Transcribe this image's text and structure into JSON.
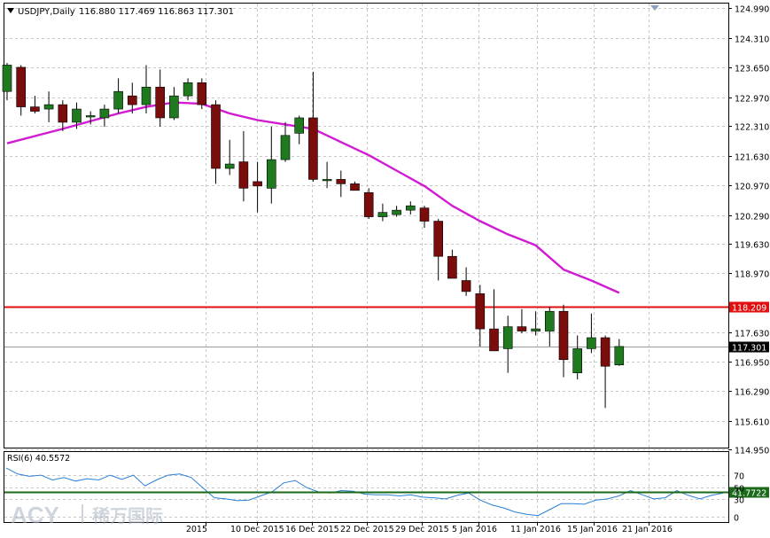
{
  "colors": {
    "background": "#ffffff",
    "grid": "#c8c8c8",
    "bull": "#1f7a1f",
    "bear": "#7a0c0c",
    "ma": "#d21ad2",
    "hline": "#e01010",
    "rsi": "#2a7fd6",
    "rsi_level": "#1a6a1a",
    "price_tag": "#000000",
    "axis_text": "#000000"
  },
  "header": {
    "menu_icon": "triangle-down-icon",
    "symbol": "USDJPY,Daily",
    "ohlc": "116.880 117.469 116.863 117.301"
  },
  "rsi_header": {
    "label": "RSI(6) 40.5572"
  },
  "watermark": {
    "brand": "ACY",
    "chinese": "稀万国际"
  },
  "chart_data": [
    {
      "type": "candlestick",
      "symbol": "USDJPY",
      "timeframe": "Daily",
      "ylim": [
        115.0,
        125.1
      ],
      "y_ticks": [
        "124.990",
        "124.310",
        "123.650",
        "122.970",
        "122.310",
        "121.630",
        "120.970",
        "120.290",
        "119.630",
        "118.970",
        "117.630",
        "116.950",
        "116.290",
        "115.610",
        "114.950"
      ],
      "x_tick_labels": [
        "2015",
        "10 Dec 2015",
        "16 Dec 2015",
        "22 Dec 2015",
        "29 Dec 2015",
        "5 Jan 2016",
        "11 Jan 2016",
        "15 Jan 2016",
        "21 Jan 2016"
      ],
      "candles": [
        {
          "o": 123.1,
          "h": 123.75,
          "l": 122.9,
          "c": 123.7
        },
        {
          "o": 123.65,
          "h": 123.7,
          "l": 122.55,
          "c": 122.75
        },
        {
          "o": 122.75,
          "h": 123.0,
          "l": 122.6,
          "c": 122.65
        },
        {
          "o": 122.7,
          "h": 123.1,
          "l": 122.4,
          "c": 122.8
        },
        {
          "o": 122.8,
          "h": 122.9,
          "l": 122.2,
          "c": 122.4
        },
        {
          "o": 122.4,
          "h": 122.85,
          "l": 122.25,
          "c": 122.7
        },
        {
          "o": 122.55,
          "h": 122.65,
          "l": 122.35,
          "c": 122.55
        },
        {
          "o": 122.5,
          "h": 122.8,
          "l": 122.3,
          "c": 122.7
        },
        {
          "o": 122.7,
          "h": 123.4,
          "l": 122.6,
          "c": 123.1
        },
        {
          "o": 123.0,
          "h": 123.3,
          "l": 122.6,
          "c": 122.8
        },
        {
          "o": 122.8,
          "h": 123.7,
          "l": 122.6,
          "c": 123.2
        },
        {
          "o": 123.2,
          "h": 123.6,
          "l": 122.3,
          "c": 122.5
        },
        {
          "o": 122.5,
          "h": 123.2,
          "l": 122.45,
          "c": 123.0
        },
        {
          "o": 123.0,
          "h": 123.4,
          "l": 122.9,
          "c": 123.3
        },
        {
          "o": 123.3,
          "h": 123.4,
          "l": 122.7,
          "c": 122.8
        },
        {
          "o": 122.8,
          "h": 122.9,
          "l": 121.0,
          "c": 121.35
        },
        {
          "o": 121.35,
          "h": 122.0,
          "l": 121.2,
          "c": 121.45
        },
        {
          "o": 121.5,
          "h": 122.2,
          "l": 120.6,
          "c": 120.9
        },
        {
          "o": 121.05,
          "h": 121.5,
          "l": 120.35,
          "c": 120.95
        },
        {
          "o": 120.9,
          "h": 122.3,
          "l": 120.55,
          "c": 121.55
        },
        {
          "o": 121.55,
          "h": 122.4,
          "l": 121.5,
          "c": 122.1
        },
        {
          "o": 122.15,
          "h": 122.55,
          "l": 121.9,
          "c": 122.5
        },
        {
          "o": 122.5,
          "h": 123.55,
          "l": 121.05,
          "c": 121.1
        },
        {
          "o": 121.1,
          "h": 121.5,
          "l": 120.9,
          "c": 121.1
        },
        {
          "o": 121.1,
          "h": 121.3,
          "l": 120.7,
          "c": 121.0
        },
        {
          "o": 121.0,
          "h": 121.05,
          "l": 120.85,
          "c": 120.85
        },
        {
          "o": 120.8,
          "h": 120.9,
          "l": 120.2,
          "c": 120.25
        },
        {
          "o": 120.25,
          "h": 120.55,
          "l": 120.15,
          "c": 120.35
        },
        {
          "o": 120.3,
          "h": 120.5,
          "l": 120.25,
          "c": 120.4
        },
        {
          "o": 120.4,
          "h": 120.6,
          "l": 120.3,
          "c": 120.5
        },
        {
          "o": 120.45,
          "h": 120.5,
          "l": 120.0,
          "c": 120.15
        },
        {
          "o": 120.15,
          "h": 120.2,
          "l": 118.8,
          "c": 119.35
        },
        {
          "o": 119.35,
          "h": 119.5,
          "l": 118.85,
          "c": 118.85
        },
        {
          "o": 118.8,
          "h": 119.1,
          "l": 118.45,
          "c": 118.55
        },
        {
          "o": 118.5,
          "h": 118.7,
          "l": 117.3,
          "c": 117.7
        },
        {
          "o": 117.7,
          "h": 118.6,
          "l": 117.2,
          "c": 117.2
        },
        {
          "o": 117.25,
          "h": 118.0,
          "l": 116.7,
          "c": 117.75
        },
        {
          "o": 117.75,
          "h": 118.15,
          "l": 117.6,
          "c": 117.65
        },
        {
          "o": 117.65,
          "h": 118.1,
          "l": 117.55,
          "c": 117.7
        },
        {
          "o": 117.65,
          "h": 118.2,
          "l": 117.3,
          "c": 118.1
        },
        {
          "o": 118.1,
          "h": 118.25,
          "l": 116.6,
          "c": 117.0
        },
        {
          "o": 116.7,
          "h": 117.55,
          "l": 116.55,
          "c": 117.25
        },
        {
          "o": 117.25,
          "h": 118.05,
          "l": 117.15,
          "c": 117.5
        },
        {
          "o": 117.5,
          "h": 117.55,
          "l": 115.9,
          "c": 116.85
        },
        {
          "o": 116.88,
          "h": 117.47,
          "l": 116.86,
          "c": 117.3
        }
      ],
      "ma_series": [
        {
          "i": 0,
          "v": 121.92
        },
        {
          "i": 4,
          "v": 122.25
        },
        {
          "i": 8,
          "v": 122.6
        },
        {
          "i": 10,
          "v": 122.75
        },
        {
          "i": 12,
          "v": 122.85
        },
        {
          "i": 14,
          "v": 122.82
        },
        {
          "i": 16,
          "v": 122.6
        },
        {
          "i": 18,
          "v": 122.45
        },
        {
          "i": 20,
          "v": 122.35
        },
        {
          "i": 22,
          "v": 122.25
        },
        {
          "i": 24,
          "v": 121.95
        },
        {
          "i": 26,
          "v": 121.65
        },
        {
          "i": 28,
          "v": 121.3
        },
        {
          "i": 30,
          "v": 120.95
        },
        {
          "i": 32,
          "v": 120.5
        },
        {
          "i": 34,
          "v": 120.15
        },
        {
          "i": 36,
          "v": 119.85
        },
        {
          "i": 38,
          "v": 119.6
        },
        {
          "i": 40,
          "v": 119.05
        },
        {
          "i": 42,
          "v": 118.8
        },
        {
          "i": 44,
          "v": 118.52
        }
      ],
      "hline": {
        "value": 118.209,
        "label": "118.209"
      },
      "current_price": {
        "value": 117.301,
        "label": "117.301"
      }
    },
    {
      "type": "line",
      "name": "RSI(6)",
      "ylim": [
        0,
        100
      ],
      "y_ticks": [
        "70",
        "50",
        "30",
        "0"
      ],
      "values": [
        82,
        72,
        68,
        70,
        62,
        66,
        60,
        64,
        62,
        70,
        63,
        70,
        52,
        62,
        70,
        72,
        66,
        49,
        32,
        30,
        27,
        28,
        35,
        42,
        57,
        61,
        49,
        42,
        40,
        44,
        43,
        38,
        37,
        37,
        35,
        37,
        33,
        32,
        30,
        36,
        40,
        28,
        20,
        15,
        8,
        4,
        2,
        12,
        22,
        22,
        21,
        28,
        30,
        35,
        44,
        37,
        30,
        32,
        44,
        36,
        30,
        36,
        40
      ],
      "level": {
        "value": 41.7722,
        "label": "41.7722"
      }
    }
  ]
}
